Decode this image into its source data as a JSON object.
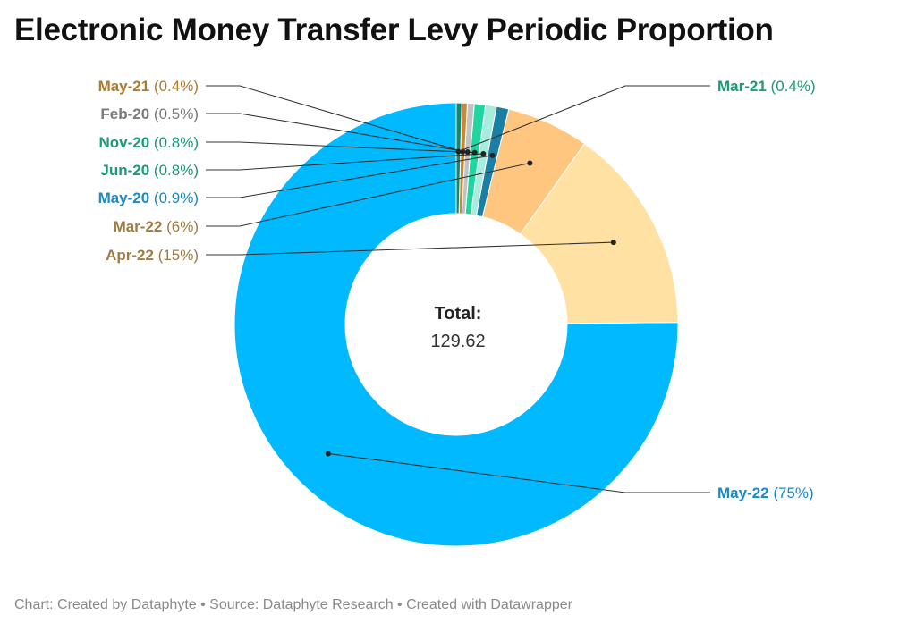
{
  "title": "Electronic Money Transfer Levy Periodic Proportion",
  "center_label": {
    "heading": "Total:",
    "value": "129.62"
  },
  "footer": "Chart: Created by Dataphyte • Source: Dataphyte Research • Created with Datawrapper",
  "chart_data": {
    "type": "pie",
    "variant": "donut",
    "title": "Electronic Money Transfer Levy Periodic Proportion",
    "total": 129.62,
    "slices": [
      {
        "label": "May-22",
        "percent_text": "(75%)",
        "value": 75.0,
        "color": "#00b9ff",
        "label_color": "#1b88c7"
      },
      {
        "label": "Apr-22",
        "percent_text": "(15%)",
        "value": 15.0,
        "color": "#ffe1a3",
        "label_color": "#a07a45"
      },
      {
        "label": "Mar-22",
        "percent_text": "(6%)",
        "value": 6.0,
        "color": "#ffc680",
        "label_color": "#a07a45"
      },
      {
        "label": "May-20",
        "percent_text": "(0.9%)",
        "value": 0.9,
        "color": "#1a7fa3",
        "label_color": "#1b88c7"
      },
      {
        "label": "Jun-20",
        "percent_text": "(0.8%)",
        "value": 0.8,
        "color": "#a8ece0",
        "label_color": "#199a79"
      },
      {
        "label": "Nov-20",
        "percent_text": "(0.8%)",
        "value": 0.8,
        "color": "#1fd6a0",
        "label_color": "#199a79"
      },
      {
        "label": "Feb-20",
        "percent_text": "(0.5%)",
        "value": 0.5,
        "color": "#c2c2c2",
        "label_color": "#7a7a7a"
      },
      {
        "label": "May-21",
        "percent_text": "(0.4%)",
        "value": 0.4,
        "color": "#c48a3c",
        "label_color": "#b07a2b"
      },
      {
        "label": "Mar-21",
        "percent_text": "(0.4%)",
        "value": 0.4,
        "color": "#12876d",
        "label_color": "#199a79"
      }
    ]
  }
}
